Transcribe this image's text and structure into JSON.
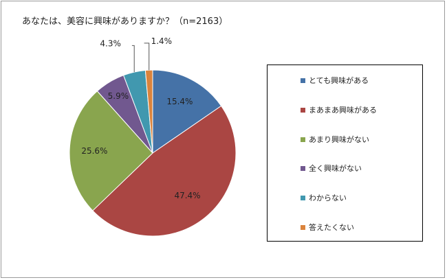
{
  "title": "あなたは、美容に興味がありますか？（n=2163）",
  "chart_data": {
    "type": "pie",
    "title": "あなたは、美容に興味がありますか？（n=2163）",
    "legend_position": "right",
    "slices": [
      {
        "label": "とても興味がある",
        "value": 15.4,
        "value_label": "15.4%",
        "color": "#4572a7"
      },
      {
        "label": "まあまあ興味がある",
        "value": 47.4,
        "value_label": "47.4%",
        "color": "#aa4643"
      },
      {
        "label": "あまり興味がない",
        "value": 25.6,
        "value_label": "25.6%",
        "color": "#89a54e"
      },
      {
        "label": "全く興味がない",
        "value": 5.9,
        "value_label": "5.9%",
        "color": "#71588f"
      },
      {
        "label": "わからない",
        "value": 4.3,
        "value_label": "4.3%",
        "color": "#4198af"
      },
      {
        "label": "答えたくない",
        "value": 1.4,
        "value_label": "1.4%",
        "color": "#db843d"
      }
    ]
  }
}
